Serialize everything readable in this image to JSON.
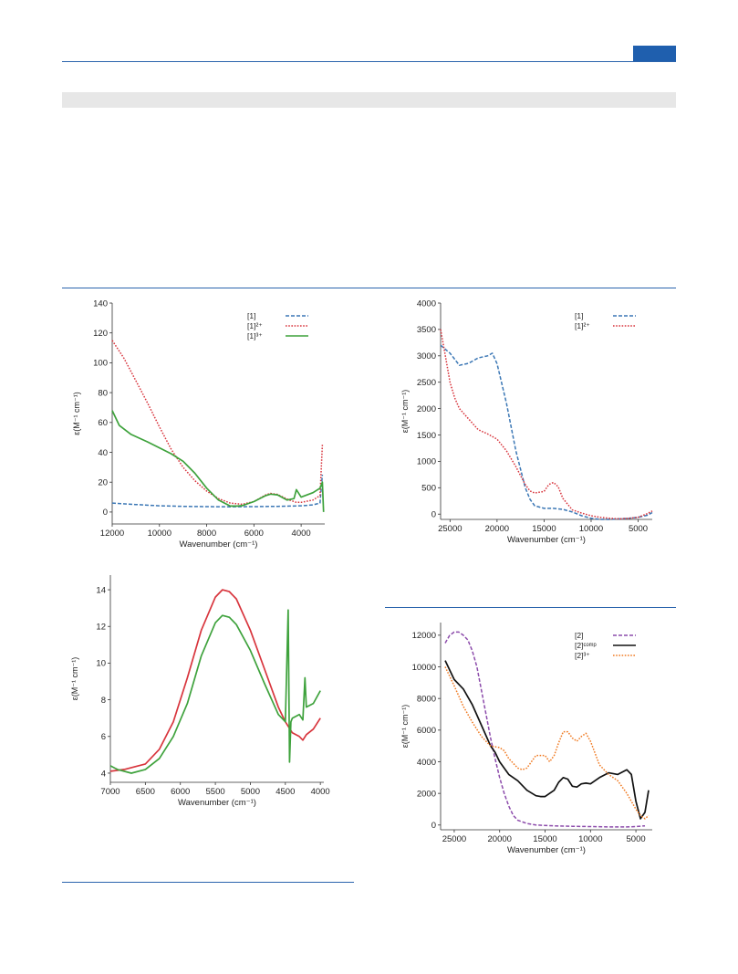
{
  "colors": {
    "blue": "#3b77b5",
    "red": "#d8353d",
    "green": "#3ea23c",
    "purple": "#8c4bab",
    "black": "#111111",
    "orange": "#f07a22",
    "accent": "#1f5fae"
  },
  "chart_data": [
    {
      "id": "A",
      "type": "line",
      "xlabel": "Wavenumber (cm⁻¹)",
      "ylabel": "ε(M⁻¹ cm⁻¹)",
      "xlim": [
        12000,
        3000
      ],
      "ylim": [
        -8,
        140
      ],
      "xticks": [
        12000,
        10000,
        8000,
        6000,
        4000
      ],
      "yticks": [
        0,
        20,
        40,
        60,
        80,
        100,
        120,
        140
      ],
      "legend": "top-right",
      "series": [
        {
          "name": "[1]",
          "color_key": "blue",
          "style": "dashed",
          "x": [
            12000,
            11000,
            10000,
            9000,
            8000,
            7000,
            6000,
            5000,
            4500,
            4000,
            3500,
            3200,
            3100
          ],
          "y": [
            6,
            5,
            4.2,
            3.8,
            3.6,
            3.5,
            3.6,
            3.8,
            4,
            4.2,
            4.8,
            6,
            25
          ]
        },
        {
          "name": "[1]²⁺",
          "color_key": "red",
          "style": "dotted",
          "x": [
            12000,
            11500,
            11000,
            10500,
            10000,
            9500,
            9000,
            8500,
            8000,
            7500,
            7000,
            6500,
            6000,
            5500,
            5300,
            5000,
            4500,
            4200,
            4000,
            3500,
            3200,
            3100
          ],
          "y": [
            115,
            103,
            88,
            73,
            57,
            42,
            30,
            21,
            14,
            9,
            6,
            5.2,
            7,
            11.5,
            12.5,
            11.8,
            8,
            6.5,
            6.5,
            8,
            11,
            45
          ]
        },
        {
          "name": "[1]³⁺",
          "color_key": "green",
          "style": "solid",
          "x": [
            12000,
            11700,
            11200,
            10500,
            10000,
            9500,
            9000,
            8500,
            8000,
            7500,
            7000,
            6700,
            6500,
            6000,
            5500,
            5300,
            5000,
            4600,
            4450,
            4300,
            4200,
            4000,
            3500,
            3200,
            3100,
            3050
          ],
          "y": [
            68,
            58,
            52,
            47,
            43,
            39,
            34,
            26,
            16,
            8,
            4,
            4,
            4.3,
            7,
            11,
            12,
            11.5,
            8,
            8.5,
            9,
            15,
            10,
            13,
            16,
            20,
            0
          ]
        }
      ]
    },
    {
      "id": "B",
      "type": "line",
      "xlabel": "Wavenumber (cm⁻¹)",
      "ylabel": "ε(M⁻¹ cm⁻¹)",
      "xlim": [
        26000,
        3500
      ],
      "ylim": [
        -100,
        4000
      ],
      "xticks": [
        25000,
        20000,
        15000,
        10000,
        5000
      ],
      "yticks": [
        0,
        500,
        1000,
        1500,
        2000,
        2500,
        3000,
        3500,
        4000
      ],
      "legend": "top-right",
      "series": [
        {
          "name": "[1]",
          "color_key": "blue",
          "style": "dashed",
          "x": [
            26000,
            25000,
            24000,
            23000,
            22000,
            21000,
            20500,
            20000,
            19000,
            18000,
            17000,
            16500,
            16000,
            15000,
            14000,
            13000,
            12000,
            11000,
            10000,
            9000,
            8000,
            7000,
            6000,
            5000,
            4000,
            3500
          ],
          "y": [
            3200,
            3050,
            2820,
            2860,
            2960,
            3000,
            3050,
            2850,
            2100,
            1200,
            500,
            280,
            160,
            110,
            110,
            90,
            40,
            -30,
            -80,
            -100,
            -100,
            -90,
            -80,
            -60,
            -20,
            30
          ]
        },
        {
          "name": "[1]²⁺",
          "color_key": "red",
          "style": "dotted",
          "x": [
            26000,
            25500,
            25000,
            24500,
            24000,
            23000,
            22000,
            21000,
            20000,
            19000,
            18000,
            17000,
            16500,
            16000,
            15000,
            14500,
            14000,
            13500,
            13000,
            12000,
            11000,
            10000,
            9000,
            8000,
            7000,
            6000,
            5000,
            4000,
            3500
          ],
          "y": [
            3500,
            3000,
            2500,
            2200,
            2000,
            1800,
            1600,
            1520,
            1420,
            1200,
            900,
            560,
            440,
            400,
            430,
            560,
            600,
            520,
            300,
            80,
            20,
            -30,
            -60,
            -80,
            -90,
            -80,
            -60,
            10,
            60
          ]
        }
      ]
    },
    {
      "id": "C",
      "type": "line",
      "xlabel": "Wavenumber (cm⁻¹)",
      "ylabel": "ε(M⁻¹ cm⁻¹)",
      "xlim": [
        7000,
        3950
      ],
      "ylim": [
        3.5,
        14.8
      ],
      "xticks": [
        7000,
        6500,
        6000,
        5500,
        5000,
        4500,
        4000
      ],
      "yticks": [
        4,
        6,
        8,
        10,
        12,
        14
      ],
      "series": [
        {
          "name": "red",
          "color_key": "red",
          "style": "solid",
          "x": [
            7000,
            6800,
            6500,
            6300,
            6100,
            5900,
            5700,
            5500,
            5400,
            5300,
            5200,
            5000,
            4800,
            4600,
            4500,
            4400,
            4300,
            4250,
            4200,
            4100,
            4000
          ],
          "y": [
            4.1,
            4.2,
            4.5,
            5.3,
            6.8,
            9.2,
            11.8,
            13.6,
            14.0,
            13.9,
            13.5,
            11.8,
            9.7,
            7.6,
            6.8,
            6.2,
            6.0,
            5.8,
            6.1,
            6.4,
            7.0
          ]
        },
        {
          "name": "green",
          "color_key": "green",
          "style": "solid",
          "x": [
            7000,
            6900,
            6700,
            6500,
            6300,
            6100,
            5900,
            5700,
            5500,
            5400,
            5300,
            5200,
            5000,
            4800,
            4600,
            4500,
            4460,
            4440,
            4420,
            4400,
            4300,
            4250,
            4220,
            4200,
            4100,
            4000
          ],
          "y": [
            4.4,
            4.2,
            4.0,
            4.2,
            4.8,
            6.0,
            7.8,
            10.4,
            12.2,
            12.6,
            12.5,
            12.1,
            10.7,
            8.9,
            7.2,
            6.8,
            12.9,
            4.6,
            6.8,
            7.0,
            7.2,
            6.9,
            9.2,
            7.6,
            7.8,
            8.5
          ]
        }
      ]
    },
    {
      "id": "D",
      "type": "line",
      "xlabel": "Wavenumber (cm⁻¹)",
      "ylabel": "ε(M⁻¹ cm⁻¹)",
      "xlim": [
        26500,
        3200
      ],
      "ylim": [
        -300,
        12800
      ],
      "xticks": [
        25000,
        20000,
        15000,
        10000,
        5000
      ],
      "yticks": [
        0,
        2000,
        4000,
        6000,
        8000,
        10000,
        12000
      ],
      "legend": "top-right",
      "series": [
        {
          "name": "[2]",
          "color_key": "purple",
          "style": "dashed",
          "x": [
            26000,
            25500,
            25000,
            24500,
            24000,
            23500,
            23000,
            22500,
            22000,
            21500,
            21000,
            20500,
            20000,
            19500,
            19000,
            18500,
            18000,
            17000,
            16000,
            14000,
            12000,
            10000,
            8000,
            6000,
            5000,
            4000
          ],
          "y": [
            11500,
            12000,
            12200,
            12200,
            12000,
            11700,
            11000,
            10000,
            8500,
            7000,
            5500,
            4200,
            3000,
            2000,
            1200,
            600,
            300,
            100,
            0,
            -50,
            -80,
            -100,
            -120,
            -120,
            -100,
            -50
          ]
        },
        {
          "name": "[2]ᶜᵒᵐᵖ",
          "color_key": "black",
          "style": "solid",
          "x": [
            26000,
            25000,
            24000,
            23000,
            22000,
            21000,
            20500,
            20000,
            19000,
            18000,
            17000,
            16000,
            15500,
            15000,
            14000,
            13500,
            13000,
            12500,
            12000,
            11500,
            11000,
            10500,
            10000,
            9000,
            8000,
            7000,
            6000,
            5500,
            5000,
            4500,
            4000,
            3600
          ],
          "y": [
            10400,
            9200,
            8600,
            7600,
            6300,
            5000,
            4600,
            4000,
            3200,
            2800,
            2200,
            1850,
            1800,
            1800,
            2200,
            2700,
            3000,
            2900,
            2450,
            2400,
            2600,
            2650,
            2600,
            3000,
            3300,
            3200,
            3500,
            3200,
            1500,
            400,
            800,
            2200
          ]
        },
        {
          "name": "[2]³⁺",
          "color_key": "orange",
          "style": "dotted",
          "x": [
            26000,
            25000,
            24000,
            23000,
            22000,
            21000,
            20000,
            19500,
            19000,
            18000,
            17500,
            17000,
            16000,
            15000,
            14500,
            14000,
            13500,
            13000,
            12500,
            12000,
            11500,
            11000,
            10500,
            10000,
            9000,
            8000,
            7000,
            6000,
            5000,
            4500,
            4000,
            3600
          ],
          "y": [
            10000,
            8800,
            7500,
            6500,
            5600,
            5000,
            4900,
            4700,
            4200,
            3600,
            3500,
            3600,
            4400,
            4400,
            4000,
            4400,
            5200,
            5900,
            5900,
            5500,
            5300,
            5600,
            5800,
            5300,
            3800,
            3200,
            2800,
            2000,
            1000,
            600,
            400,
            600
          ]
        }
      ]
    }
  ]
}
